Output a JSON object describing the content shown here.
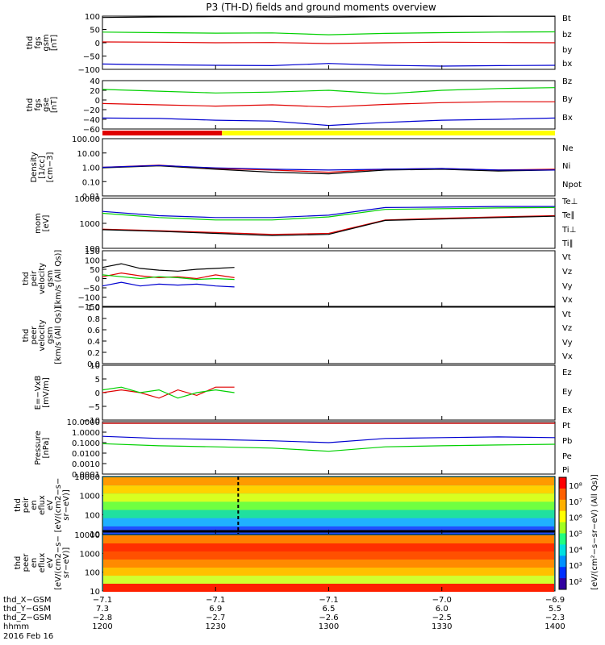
{
  "title": "P3 (TH-D) fields and ground moments overview",
  "colors": {
    "black": "#000000",
    "red": "#e00000",
    "green": "#00d000",
    "blue": "#0000d0",
    "yellow": "#ffff00",
    "bar_red": "#e00000"
  },
  "chart_data": [
    {
      "type": "line",
      "id": "fgs-gsm",
      "ylabel": [
        "thd",
        "fgs",
        "gsm",
        "[nT]"
      ],
      "yticks": [
        "100",
        "50",
        "0",
        "−50",
        "−100"
      ],
      "ylim": [
        -100,
        100
      ],
      "series": [
        {
          "name": "Bt",
          "color": "#000000",
          "x": [
            1200,
            1215,
            1230,
            1245,
            1300,
            1315,
            1330,
            1345,
            1400
          ],
          "values": [
            95,
            97,
            98,
            97,
            96,
            98,
            98,
            99,
            99
          ]
        },
        {
          "name": "bz",
          "color": "#e00000",
          "x": [
            1200,
            1215,
            1230,
            1245,
            1300,
            1315,
            1330,
            1345,
            1400
          ],
          "values": [
            3,
            2,
            0,
            1,
            -3,
            0,
            2,
            1,
            0
          ]
        },
        {
          "name": "by",
          "color": "#00d000",
          "x": [
            1200,
            1215,
            1230,
            1245,
            1300,
            1315,
            1330,
            1345,
            1400
          ],
          "values": [
            40,
            38,
            36,
            37,
            30,
            35,
            38,
            40,
            41
          ]
        },
        {
          "name": "bx",
          "color": "#0000d0",
          "x": [
            1200,
            1215,
            1230,
            1245,
            1300,
            1315,
            1330,
            1345,
            1400
          ],
          "values": [
            -80,
            -83,
            -85,
            -86,
            -78,
            -85,
            -88,
            -86,
            -85
          ]
        }
      ]
    },
    {
      "type": "line",
      "id": "fgs-gse",
      "ylabel": [
        "thd",
        "fgs",
        "gse",
        "[nT]"
      ],
      "yticks": [
        "40",
        "20",
        "0",
        "−20",
        "−40",
        "−60"
      ],
      "ylim": [
        -70,
        40
      ],
      "series": [
        {
          "name": "Bz",
          "color": "#e00000",
          "x": [
            1200,
            1215,
            1230,
            1245,
            1300,
            1315,
            1330,
            1345,
            1400
          ],
          "values": [
            -12,
            -15,
            -18,
            -15,
            -20,
            -14,
            -10,
            -8,
            -8
          ]
        },
        {
          "name": "By",
          "color": "#00d000",
          "x": [
            1200,
            1215,
            1230,
            1245,
            1300,
            1315,
            1330,
            1345,
            1400
          ],
          "values": [
            20,
            16,
            12,
            14,
            18,
            10,
            18,
            22,
            24
          ]
        },
        {
          "name": "Bx",
          "color": "#0000d0",
          "x": [
            1200,
            1215,
            1230,
            1245,
            1300,
            1315,
            1330,
            1345,
            1400
          ],
          "values": [
            -45,
            -46,
            -50,
            -52,
            -62,
            -55,
            -50,
            -48,
            -45
          ]
        }
      ]
    },
    {
      "type": "line",
      "id": "density",
      "log": true,
      "ylabel": [
        "Density",
        "[1/cc]",
        "[cm−3]"
      ],
      "yticks": [
        "100.00",
        "10.00",
        "1.00",
        "0.10",
        "0.01"
      ],
      "ylim": [
        0.005,
        200
      ],
      "series": [
        {
          "name": "Ne",
          "color": "#e00000",
          "x": [
            1200,
            1215,
            1230,
            1245,
            1300,
            1315,
            1330,
            1345,
            1400
          ],
          "values": [
            1.0,
            1.5,
            0.8,
            0.6,
            0.4,
            0.7,
            0.8,
            0.6,
            0.7
          ]
        },
        {
          "name": "Ni",
          "color": "#000000",
          "x": [
            1200,
            1215,
            1230,
            1245,
            1300,
            1315,
            1330,
            1345,
            1400
          ],
          "values": [
            0.9,
            1.3,
            0.7,
            0.4,
            0.3,
            0.6,
            0.7,
            0.5,
            0.6
          ]
        },
        {
          "name": "Npot",
          "color": "#0000d0",
          "x": [
            1200,
            1215,
            1230,
            1245,
            1300,
            1315,
            1330,
            1345,
            1400
          ],
          "values": [
            1.0,
            1.4,
            0.9,
            0.7,
            0.6,
            0.7,
            0.8,
            0.6,
            0.6
          ]
        }
      ]
    },
    {
      "type": "line",
      "id": "temperature",
      "log": true,
      "ylabel": [
        "mom",
        "[eV]"
      ],
      "yticks": [
        "10000",
        "1000",
        "100"
      ],
      "ylim": [
        30,
        12000
      ],
      "series": [
        {
          "name": "Te⊥",
          "color": "#e00000",
          "x": [
            1200,
            1215,
            1230,
            1245,
            1300,
            1315,
            1330,
            1345,
            1400
          ],
          "values": [
            300,
            250,
            200,
            160,
            180,
            900,
            1100,
            1300,
            1500
          ]
        },
        {
          "name": "Te∥",
          "color": "#000000",
          "x": [
            1200,
            1215,
            1230,
            1245,
            1300,
            1315,
            1330,
            1345,
            1400
          ],
          "values": [
            280,
            230,
            180,
            140,
            160,
            850,
            1000,
            1200,
            1400
          ]
        },
        {
          "name": "Ti⊥",
          "color": "#0000d0",
          "x": [
            1200,
            1215,
            1230,
            1245,
            1300,
            1315,
            1330,
            1345,
            1400
          ],
          "values": [
            2500,
            1500,
            1200,
            1200,
            1600,
            4000,
            4200,
            4500,
            4500
          ]
        },
        {
          "name": "Ti∥",
          "color": "#00d000",
          "x": [
            1200,
            1215,
            1230,
            1245,
            1300,
            1315,
            1330,
            1345,
            1400
          ],
          "values": [
            2000,
            1200,
            900,
            900,
            1300,
            3200,
            3500,
            3800,
            4000
          ]
        }
      ]
    },
    {
      "type": "line",
      "id": "peir-velocity",
      "ylabel": [
        "thd",
        "peir",
        "velocity",
        "gsm",
        "[km/s (All Qs)]"
      ],
      "yticks": [
        "150",
        "100",
        "50",
        "0",
        "−50",
        "−100",
        "−150"
      ],
      "ylim": [
        -150,
        150
      ],
      "series": [
        {
          "name": "Vt",
          "color": "#000000",
          "x": [
            1200,
            1205,
            1210,
            1215,
            1220,
            1225,
            1230,
            1235
          ],
          "values": [
            60,
            80,
            55,
            45,
            40,
            50,
            55,
            60
          ]
        },
        {
          "name": "Vz",
          "color": "#e00000",
          "x": [
            1200,
            1205,
            1210,
            1215,
            1220,
            1225,
            1230,
            1235
          ],
          "values": [
            10,
            30,
            15,
            5,
            10,
            0,
            20,
            5
          ]
        },
        {
          "name": "Vy",
          "color": "#00d000",
          "x": [
            1200,
            1205,
            1210,
            1215,
            1220,
            1225,
            1230,
            1235
          ],
          "values": [
            20,
            10,
            0,
            10,
            5,
            -5,
            0,
            -5
          ]
        },
        {
          "name": "Vx",
          "color": "#0000d0",
          "x": [
            1200,
            1205,
            1210,
            1215,
            1220,
            1225,
            1230,
            1235
          ],
          "values": [
            -40,
            -20,
            -40,
            -30,
            -35,
            -30,
            -40,
            -45
          ]
        }
      ]
    },
    {
      "type": "line",
      "id": "peer-velocity",
      "ylabel": [
        "thd",
        "peer",
        "velocity",
        "gsm",
        "[km/s (All Qs)]"
      ],
      "yticks": [
        "1.0",
        "0.8",
        "0.6",
        "0.4",
        "0.2",
        "0.0"
      ],
      "ylim": [
        0,
        1
      ],
      "series": [
        {
          "name": "Vt",
          "color": "#000000",
          "x": [],
          "values": []
        },
        {
          "name": "Vz",
          "color": "#e00000",
          "x": [],
          "values": []
        },
        {
          "name": "Vy",
          "color": "#00d000",
          "x": [],
          "values": []
        },
        {
          "name": "Vx",
          "color": "#0000d0",
          "x": [],
          "values": []
        }
      ]
    },
    {
      "type": "line",
      "id": "e-field",
      "ylabel": [
        "E=−VxB",
        "[mV/m]"
      ],
      "yticks": [
        "10",
        "5",
        "0",
        "−5",
        "−10"
      ],
      "ylim": [
        -10,
        10
      ],
      "series": [
        {
          "name": "Ez",
          "color": "#e00000",
          "x": [
            1200,
            1205,
            1210,
            1215,
            1220,
            1225,
            1230,
            1235
          ],
          "values": [
            0,
            1,
            0,
            -2,
            1,
            -1,
            2,
            2
          ]
        },
        {
          "name": "Ey",
          "color": "#00d000",
          "x": [
            1200,
            1205,
            1210,
            1215,
            1220,
            1225,
            1230,
            1235
          ],
          "values": [
            1,
            2,
            0,
            1,
            -2,
            0,
            1,
            0
          ]
        },
        {
          "name": "Ex",
          "color": "#0000d0",
          "x": [],
          "values": []
        }
      ]
    },
    {
      "type": "line",
      "id": "pressure",
      "log": true,
      "ylabel": [
        "Pressure",
        "[nPa]"
      ],
      "yticks": [
        "10.0000",
        "1.0000",
        "0.1000",
        "0.0100",
        "0.0010",
        "0.0001"
      ],
      "ylim": [
        0.0001,
        10
      ],
      "series": [
        {
          "name": "Pt",
          "color": "#000000",
          "x": [
            1200,
            1230,
            1300,
            1330,
            1400
          ],
          "values": [
            7,
            7,
            7,
            7,
            7
          ]
        },
        {
          "name": "Pb",
          "color": "#e00000",
          "x": [
            1200,
            1230,
            1300,
            1330,
            1400
          ],
          "values": [
            7,
            7,
            7,
            7,
            7
          ]
        },
        {
          "name": "Pe",
          "color": "#00d000",
          "x": [
            1200,
            1215,
            1230,
            1245,
            1300,
            1315,
            1330,
            1345,
            1400
          ],
          "values": [
            0.08,
            0.05,
            0.04,
            0.03,
            0.015,
            0.04,
            0.05,
            0.06,
            0.07
          ]
        },
        {
          "name": "Pi",
          "color": "#0000d0",
          "x": [
            1200,
            1215,
            1230,
            1245,
            1300,
            1315,
            1330,
            1345,
            1400
          ],
          "values": [
            0.4,
            0.25,
            0.2,
            0.15,
            0.1,
            0.25,
            0.3,
            0.35,
            0.3
          ]
        }
      ]
    },
    {
      "type": "heatmap",
      "id": "peir-spectrogram",
      "ylabel": [
        "thd",
        "peir",
        "en",
        "eflux",
        "eV",
        "[eV/(cm2−s−",
        "sr−eV)]"
      ],
      "yticks": [
        "10000",
        "1000",
        "100",
        "10"
      ]
    },
    {
      "type": "heatmap",
      "id": "peer-spectrogram",
      "ylabel": [
        "thd",
        "peer",
        "en",
        "eflux",
        "eV",
        "[eV/(cm2−s−",
        "sr−eV)]"
      ],
      "yticks": [
        "10000",
        "1000",
        "100",
        "10"
      ]
    }
  ],
  "colorbar": {
    "labels": [
      "10⁸",
      "10⁷",
      "10⁶",
      "10⁵",
      "10⁴",
      "10³",
      "10²"
    ],
    "title": "[eV/(cm²−s−sr−eV) (All Qs)]"
  },
  "footer": {
    "rows": [
      {
        "label": "thd_X−GSM",
        "values": [
          "−7.1",
          "−7.1",
          "−7.1",
          "−7.0",
          "−6.9"
        ]
      },
      {
        "label": "thd_Y−GSM",
        "values": [
          "7.3",
          "6.9",
          "6.5",
          "6.0",
          "5.5"
        ]
      },
      {
        "label": "thd_Z−GSM",
        "values": [
          "−2.8",
          "−2.7",
          "−2.6",
          "−2.5",
          "−2.3"
        ]
      },
      {
        "label": "hhmm",
        "values": [
          "1200",
          "1230",
          "1300",
          "1330",
          "1400"
        ]
      }
    ],
    "date": "2016 Feb 16"
  }
}
